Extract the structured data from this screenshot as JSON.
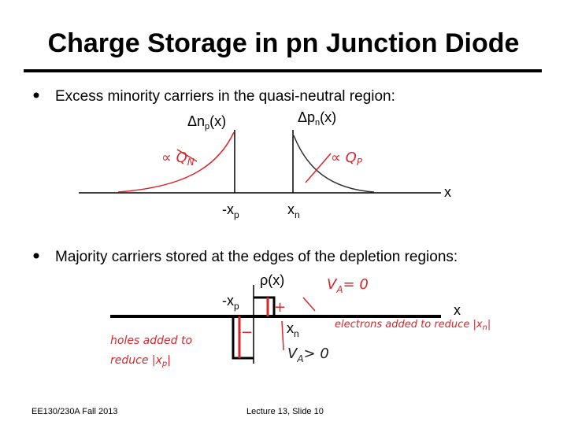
{
  "title": "Charge Storage in pn Junction Diode",
  "bullets": [
    "Excess minority carriers in the quasi-neutral region:",
    "Majority carriers stored at the edges of the depletion regions:"
  ],
  "diagram1": {
    "left_axis": {
      "text": "Δn",
      "sub": "p",
      "suffix": "(x)"
    },
    "right_axis": {
      "text": "Δp",
      "sub": "n",
      "suffix": "(x)"
    },
    "neg_edge": {
      "text": "-x",
      "sub": "p"
    },
    "pos_edge": {
      "text": "x",
      "sub": "n"
    },
    "x_axis": "x",
    "left_note": {
      "text": "∝ Q",
      "sub": "N"
    },
    "right_note": {
      "text": "∝ Q",
      "sub": "P"
    }
  },
  "diagram2": {
    "y_axis": "ρ(x)",
    "neg_edge": {
      "text": "-x",
      "sub": "p"
    },
    "pos_edge": {
      "text": "x",
      "sub": "n"
    },
    "x_axis": "x",
    "plus": "+",
    "minus": "−",
    "va_zero": {
      "text": "V",
      "sub": "A",
      "suffix": "= 0"
    },
    "va_pos": {
      "text": "V",
      "sub": "A",
      "suffix": "> 0"
    },
    "holes_note": [
      "holes added to",
      "reduce |x",
      "p",
      "|"
    ],
    "electrons_note": "electrons added to reduce |x",
    "electrons_sub": "n",
    "electrons_end": "|"
  },
  "footer": {
    "left": "EE130/230A Fall 2013",
    "center": "Lecture 13, Slide 10"
  }
}
